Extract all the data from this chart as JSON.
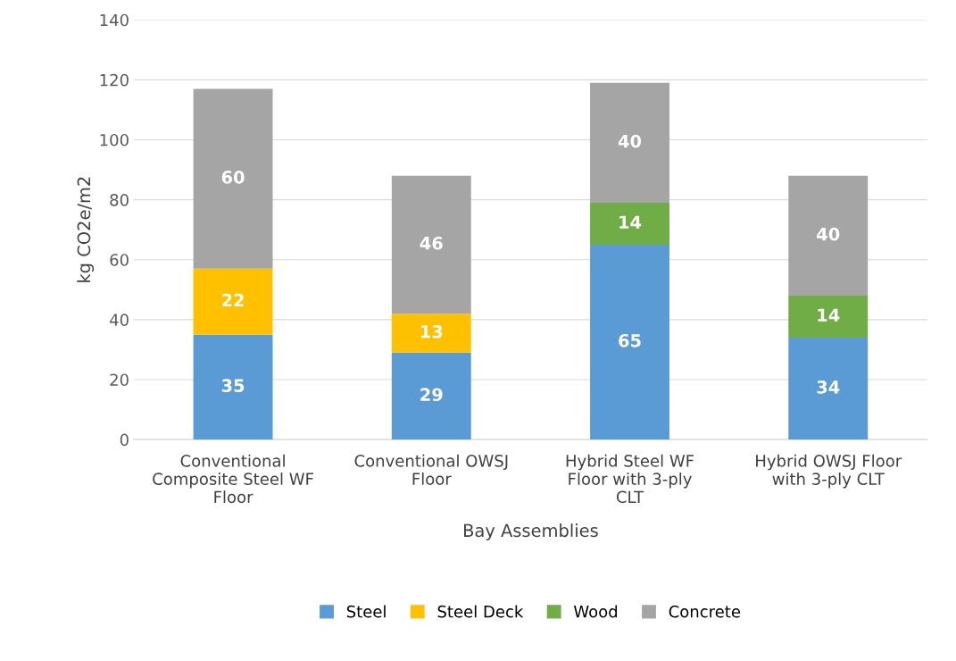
{
  "chart_data": {
    "type": "bar",
    "stacked": true,
    "xlabel": "Bay Assemblies",
    "ylabel": "kg CO2e/m2",
    "categories": [
      "Conventional Composite Steel WF Floor",
      "Conventional OWSJ Floor",
      "Hybrid Steel WF Floor with 3-ply CLT",
      "Hybrid OWSJ Floor with 3-ply CLT"
    ],
    "series": [
      {
        "name": "Steel",
        "color": "#5b9bd5",
        "values": [
          35,
          29,
          65,
          34
        ]
      },
      {
        "name": "Steel Deck",
        "color": "#ffc000",
        "values": [
          22,
          13,
          null,
          null
        ]
      },
      {
        "name": "Wood",
        "color": "#70ad47",
        "values": [
          null,
          null,
          14,
          14
        ]
      },
      {
        "name": "Concrete",
        "color": "#a5a5a5",
        "values": [
          60,
          46,
          40,
          40
        ]
      }
    ],
    "ylim": [
      0,
      140
    ],
    "yticks": [
      0,
      20,
      40,
      60,
      80,
      100,
      120,
      140
    ],
    "grid": "y",
    "legend": "bottom",
    "data_labels": true
  }
}
